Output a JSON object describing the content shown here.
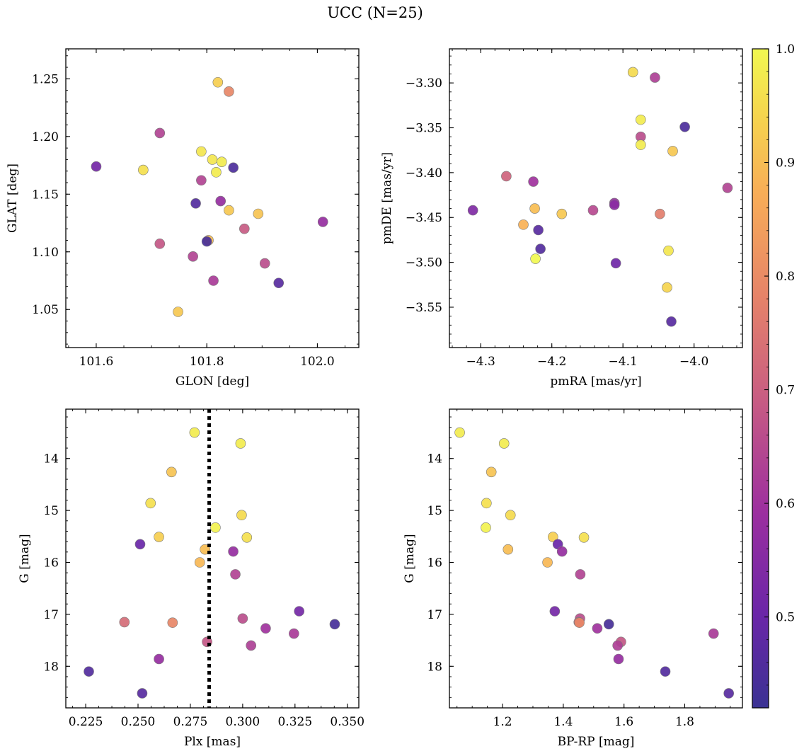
{
  "title": "UCC (N=25)",
  "colors": {
    "point_edge": "#7a7a7a",
    "threshold_line": "#000000",
    "frame": "#000000",
    "colormap": "plasma"
  },
  "colorbar": {
    "vmin": 0.42,
    "vmax": 1.0,
    "ticks": [
      "0.5",
      "0.6",
      "0.7",
      "0.8",
      "0.9",
      "1.0"
    ],
    "tick_values": [
      0.5,
      0.6,
      0.7,
      0.8,
      0.9,
      1.0
    ]
  },
  "chart_data": [
    {
      "type": "scatter",
      "id": "glon-glat",
      "xlabel": "GLON [deg]",
      "ylabel": "GLAT [deg]",
      "xlim": [
        101.545,
        102.075
      ],
      "ylim": [
        1.017,
        1.276
      ],
      "y_inverted": false,
      "xticks": [
        101.6,
        101.8,
        102.0
      ],
      "xtick_labels": [
        "101.6",
        "101.8",
        "102.0"
      ],
      "yticks": [
        1.05,
        1.1,
        1.15,
        1.2,
        1.25
      ],
      "ytick_labels": [
        "1.05",
        "1.10",
        "1.15",
        "1.20",
        "1.25"
      ],
      "points": [
        {
          "x": 101.82,
          "y": 1.247,
          "c": 0.93
        },
        {
          "x": 101.84,
          "y": 1.239,
          "c": 0.79
        },
        {
          "x": 101.715,
          "y": 1.203,
          "c": 0.64
        },
        {
          "x": 101.79,
          "y": 1.187,
          "c": 0.97
        },
        {
          "x": 101.81,
          "y": 1.18,
          "c": 0.97
        },
        {
          "x": 101.827,
          "y": 1.178,
          "c": 0.98
        },
        {
          "x": 101.6,
          "y": 1.174,
          "c": 0.52
        },
        {
          "x": 101.848,
          "y": 1.173,
          "c": 0.45
        },
        {
          "x": 101.685,
          "y": 1.171,
          "c": 0.96
        },
        {
          "x": 101.817,
          "y": 1.169,
          "c": 0.98
        },
        {
          "x": 101.79,
          "y": 1.162,
          "c": 0.64
        },
        {
          "x": 101.825,
          "y": 1.144,
          "c": 0.58
        },
        {
          "x": 101.78,
          "y": 1.142,
          "c": 0.46
        },
        {
          "x": 101.84,
          "y": 1.136,
          "c": 0.92
        },
        {
          "x": 101.893,
          "y": 1.133,
          "c": 0.91
        },
        {
          "x": 101.868,
          "y": 1.12,
          "c": 0.69
        },
        {
          "x": 102.01,
          "y": 1.126,
          "c": 0.58
        },
        {
          "x": 101.803,
          "y": 1.11,
          "c": 0.9
        },
        {
          "x": 101.8,
          "y": 1.109,
          "c": 0.44
        },
        {
          "x": 101.715,
          "y": 1.107,
          "c": 0.68
        },
        {
          "x": 101.775,
          "y": 1.096,
          "c": 0.64
        },
        {
          "x": 101.905,
          "y": 1.09,
          "c": 0.66
        },
        {
          "x": 101.812,
          "y": 1.075,
          "c": 0.62
        },
        {
          "x": 101.93,
          "y": 1.073,
          "c": 0.47
        },
        {
          "x": 101.748,
          "y": 1.048,
          "c": 0.92
        }
      ]
    },
    {
      "type": "scatter",
      "id": "pmra-pmde",
      "xlabel": "pmRA [mas/yr]",
      "ylabel": "pmDE [mas/yr]",
      "xlim": [
        -4.344,
        -3.932
      ],
      "ylim": [
        -3.595,
        -3.262
      ],
      "y_inverted": false,
      "xticks": [
        -4.3,
        -4.2,
        -4.1,
        -4.0
      ],
      "xtick_labels": [
        "−4.3",
        "−4.2",
        "−4.1",
        "−4.0"
      ],
      "yticks": [
        -3.55,
        -3.5,
        -3.45,
        -3.4,
        -3.35,
        -3.3
      ],
      "ytick_labels": [
        "−3.55",
        "−3.50",
        "−3.45",
        "−3.40",
        "−3.35",
        "−3.30"
      ],
      "points": [
        {
          "x": -4.086,
          "y": -3.288,
          "c": 0.95
        },
        {
          "x": -4.055,
          "y": -3.294,
          "c": 0.63
        },
        {
          "x": -4.075,
          "y": -3.341,
          "c": 0.98
        },
        {
          "x": -4.013,
          "y": -3.349,
          "c": 0.45
        },
        {
          "x": -4.075,
          "y": -3.36,
          "c": 0.66
        },
        {
          "x": -4.075,
          "y": -3.369,
          "c": 0.98
        },
        {
          "x": -4.03,
          "y": -3.376,
          "c": 0.92
        },
        {
          "x": -4.264,
          "y": -3.404,
          "c": 0.71
        },
        {
          "x": -4.226,
          "y": -3.41,
          "c": 0.6
        },
        {
          "x": -3.953,
          "y": -3.417,
          "c": 0.64
        },
        {
          "x": -4.112,
          "y": -3.434,
          "c": 0.58
        },
        {
          "x": -4.112,
          "y": -3.436,
          "c": 0.56
        },
        {
          "x": -4.224,
          "y": -3.44,
          "c": 0.9
        },
        {
          "x": -4.142,
          "y": -3.442,
          "c": 0.65
        },
        {
          "x": -4.311,
          "y": -3.442,
          "c": 0.54
        },
        {
          "x": -4.186,
          "y": -3.446,
          "c": 0.92
        },
        {
          "x": -4.048,
          "y": -3.446,
          "c": 0.77
        },
        {
          "x": -4.24,
          "y": -3.458,
          "c": 0.88
        },
        {
          "x": -4.219,
          "y": -3.464,
          "c": 0.47
        },
        {
          "x": -4.216,
          "y": -3.485,
          "c": 0.46
        },
        {
          "x": -4.036,
          "y": -3.487,
          "c": 0.97
        },
        {
          "x": -4.223,
          "y": -3.496,
          "c": 1.0
        },
        {
          "x": -4.11,
          "y": -3.501,
          "c": 0.51
        },
        {
          "x": -4.038,
          "y": -3.528,
          "c": 0.94
        },
        {
          "x": -4.032,
          "y": -3.566,
          "c": 0.47
        }
      ]
    },
    {
      "type": "scatter",
      "id": "plx-g",
      "xlabel": "Plx [mas]",
      "ylabel": "G [mag]",
      "xlim": [
        0.2155,
        0.3555
      ],
      "ylim": [
        13.05,
        18.8
      ],
      "y_inverted": true,
      "threshold_x": 0.284,
      "xticks": [
        0.225,
        0.25,
        0.275,
        0.3,
        0.325,
        0.35
      ],
      "xtick_labels": [
        "0.225",
        "0.250",
        "0.275",
        "0.300",
        "0.325",
        "0.350"
      ],
      "yticks": [
        14,
        15,
        16,
        17,
        18
      ],
      "ytick_labels": [
        "14",
        "15",
        "16",
        "17",
        "18"
      ],
      "points": [
        {
          "x": 0.277,
          "y": 13.5,
          "c": 0.98
        },
        {
          "x": 0.299,
          "y": 13.71,
          "c": 0.98
        },
        {
          "x": 0.266,
          "y": 14.26,
          "c": 0.91
        },
        {
          "x": 0.256,
          "y": 14.86,
          "c": 0.96
        },
        {
          "x": 0.2995,
          "y": 15.09,
          "c": 0.95
        },
        {
          "x": 0.287,
          "y": 15.33,
          "c": 0.99
        },
        {
          "x": 0.26,
          "y": 15.51,
          "c": 0.93
        },
        {
          "x": 0.302,
          "y": 15.52,
          "c": 0.96
        },
        {
          "x": 0.251,
          "y": 15.65,
          "c": 0.5
        },
        {
          "x": 0.282,
          "y": 15.75,
          "c": 0.9
        },
        {
          "x": 0.2955,
          "y": 15.79,
          "c": 0.58
        },
        {
          "x": 0.2795,
          "y": 16.0,
          "c": 0.89
        },
        {
          "x": 0.2965,
          "y": 16.23,
          "c": 0.64
        },
        {
          "x": 0.327,
          "y": 16.94,
          "c": 0.52
        },
        {
          "x": 0.3,
          "y": 17.08,
          "c": 0.66
        },
        {
          "x": 0.2435,
          "y": 17.15,
          "c": 0.73
        },
        {
          "x": 0.2665,
          "y": 17.16,
          "c": 0.79
        },
        {
          "x": 0.344,
          "y": 17.19,
          "c": 0.44
        },
        {
          "x": 0.311,
          "y": 17.27,
          "c": 0.6
        },
        {
          "x": 0.3245,
          "y": 17.37,
          "c": 0.62
        },
        {
          "x": 0.283,
          "y": 17.53,
          "c": 0.68
        },
        {
          "x": 0.304,
          "y": 17.6,
          "c": 0.63
        },
        {
          "x": 0.26,
          "y": 17.86,
          "c": 0.58
        },
        {
          "x": 0.2265,
          "y": 18.1,
          "c": 0.46
        },
        {
          "x": 0.252,
          "y": 18.52,
          "c": 0.47
        }
      ]
    },
    {
      "type": "scatter",
      "id": "bprp-g",
      "xlabel": "BP-RP [mag]",
      "ylabel": "G [mag]",
      "xlim": [
        1.025,
        1.99
      ],
      "ylim": [
        13.05,
        18.8
      ],
      "y_inverted": true,
      "xticks": [
        1.2,
        1.4,
        1.6,
        1.8
      ],
      "xtick_labels": [
        "1.2",
        "1.4",
        "1.6",
        "1.8"
      ],
      "yticks": [
        14,
        15,
        16,
        17,
        18
      ],
      "ytick_labels": [
        "14",
        "15",
        "16",
        "17",
        "18"
      ],
      "points": [
        {
          "x": 1.059,
          "y": 13.5,
          "c": 0.98
        },
        {
          "x": 1.205,
          "y": 13.71,
          "c": 0.98
        },
        {
          "x": 1.163,
          "y": 14.26,
          "c": 0.91
        },
        {
          "x": 1.147,
          "y": 14.86,
          "c": 0.96
        },
        {
          "x": 1.226,
          "y": 15.09,
          "c": 0.95
        },
        {
          "x": 1.145,
          "y": 15.33,
          "c": 0.99
        },
        {
          "x": 1.366,
          "y": 15.51,
          "c": 0.93
        },
        {
          "x": 1.468,
          "y": 15.52,
          "c": 0.96
        },
        {
          "x": 1.382,
          "y": 15.65,
          "c": 0.5
        },
        {
          "x": 1.218,
          "y": 15.75,
          "c": 0.9
        },
        {
          "x": 1.396,
          "y": 15.79,
          "c": 0.58
        },
        {
          "x": 1.348,
          "y": 16.0,
          "c": 0.89
        },
        {
          "x": 1.456,
          "y": 16.23,
          "c": 0.64
        },
        {
          "x": 1.372,
          "y": 16.94,
          "c": 0.52
        },
        {
          "x": 1.455,
          "y": 17.08,
          "c": 0.66
        },
        {
          "x": 1.451,
          "y": 17.15,
          "c": 0.73
        },
        {
          "x": 1.453,
          "y": 17.16,
          "c": 0.79
        },
        {
          "x": 1.55,
          "y": 17.19,
          "c": 0.44
        },
        {
          "x": 1.512,
          "y": 17.27,
          "c": 0.6
        },
        {
          "x": 1.895,
          "y": 17.37,
          "c": 0.62
        },
        {
          "x": 1.59,
          "y": 17.53,
          "c": 0.68
        },
        {
          "x": 1.579,
          "y": 17.6,
          "c": 0.63
        },
        {
          "x": 1.582,
          "y": 17.86,
          "c": 0.58
        },
        {
          "x": 1.736,
          "y": 18.1,
          "c": 0.46
        },
        {
          "x": 1.945,
          "y": 18.52,
          "c": 0.47
        }
      ]
    }
  ]
}
